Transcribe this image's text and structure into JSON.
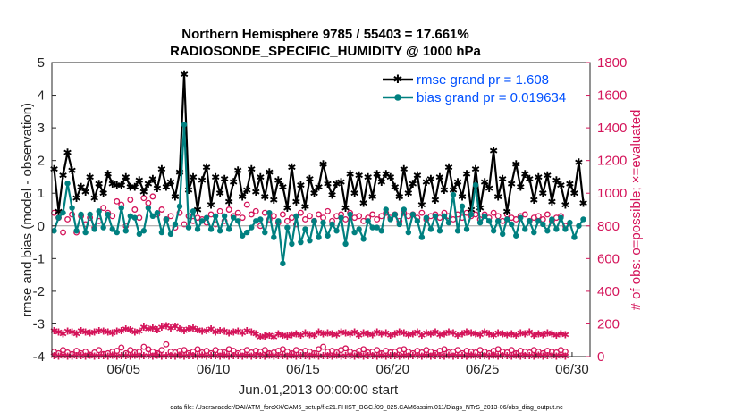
{
  "chart_data": {
    "type": "line",
    "title": "Northern Hemisphere 9785 / 55403 = 17.661%",
    "subtitle": "RADIOSONDE_SPECIFIC_HUMIDITY @ 1000 hPa",
    "xlabel": "Jun.01,2013 00:00:00 start",
    "ylabel_left": "rmse and bias (model - observation)",
    "ylabel_right": "# of obs: o=possible; ×=evaluated",
    "x_tick_labels": [
      "06/05",
      "06/10",
      "06/15",
      "06/20",
      "06/25",
      "06/30"
    ],
    "x_tick_values": [
      5,
      10,
      15,
      20,
      25,
      30
    ],
    "xlim": [
      1,
      31
    ],
    "ylim_left": [
      -4,
      5
    ],
    "ylim_right": [
      0,
      1800
    ],
    "y_ticks_left": [
      "-4",
      "-3",
      "-2",
      "-1",
      "0",
      "1",
      "2",
      "3",
      "4",
      "5"
    ],
    "y_ticks_right": [
      "0",
      "200",
      "400",
      "600",
      "800",
      "1000",
      "1200",
      "1400",
      "1600",
      "1800"
    ],
    "series": [
      {
        "name": "rmse grand pr = 1.608",
        "axis": "left",
        "color": "#000000",
        "marker": "hexagram",
        "values": [
          1.75,
          0.45,
          1.55,
          2.25,
          1.7,
          0.85,
          1.2,
          1.05,
          1.5,
          0.85,
          1.3,
          1.0,
          1.6,
          1.3,
          1.25,
          1.25,
          1.5,
          1.2,
          1.2,
          1.4,
          1.05,
          1.3,
          1.45,
          1.15,
          1.75,
          1.2,
          1.35,
          0.9,
          1.65,
          4.65,
          1.1,
          1.5,
          0.5,
          1.4,
          1.8,
          0.65,
          1.5,
          1.0,
          1.45,
          0.75,
          1.35,
          1.7,
          0.9,
          1.1,
          1.75,
          1.05,
          1.5,
          0.9,
          1.65,
          0.8,
          1.4,
          1.2,
          0.55,
          1.8,
          0.75,
          1.25,
          0.6,
          1.45,
          1.0,
          1.2,
          1.9,
          1.3,
          0.95,
          1.3,
          1.35,
          0.55,
          1.6,
          1.0,
          1.55,
          0.7,
          1.5,
          0.9,
          1.6,
          1.35,
          1.6,
          1.5,
          1.2,
          0.9,
          1.75,
          1.0,
          1.3,
          1.55,
          0.65,
          1.35,
          1.45,
          0.8,
          1.5,
          1.1,
          1.8,
          1.1,
          1.35,
          0.9,
          1.6,
          0.5,
          1.75,
          0.55,
          1.35,
          1.15,
          2.3,
          0.9,
          1.45,
          0.45,
          1.3,
          1.9,
          1.2,
          1.6,
          1.45,
          0.8,
          1.5,
          1.0,
          1.55,
          0.75,
          1.4,
          1.25,
          0.65,
          1.3,
          1.0,
          1.95,
          0.7
        ],
        "x": "t = 1 + i * 0.25 (6-hourly from Jun 01 00Z)"
      },
      {
        "name": "bias grand pr = 0.019634",
        "axis": "left",
        "color": "#008080",
        "marker": "circle",
        "values": [
          -0.15,
          0.25,
          0.4,
          1.3,
          0.55,
          -0.15,
          0.35,
          -0.2,
          0.35,
          -0.1,
          0.45,
          -0.05,
          0.35,
          -0.1,
          -0.2,
          0.55,
          -0.15,
          0.3,
          0.25,
          -0.25,
          -0.15,
          0.55,
          0.3,
          0.4,
          -0.2,
          0.2,
          -0.25,
          0.05,
          0.6,
          3.1,
          -0.05,
          0.45,
          -0.1,
          0.15,
          0.25,
          -0.1,
          0.3,
          -0.15,
          0.3,
          -0.1,
          0.25,
          0.15,
          -0.3,
          -0.2,
          -0.05,
          0.15,
          0.2,
          -0.2,
          0.4,
          -0.35,
          0.15,
          -1.15,
          -0.05,
          -0.55,
          0.3,
          -0.5,
          -0.1,
          -0.45,
          0.15,
          -0.35,
          0.1,
          -0.3,
          0.05,
          -0.15,
          0.25,
          -0.55,
          0.35,
          -0.2,
          -0.1,
          -0.4,
          0.15,
          -0.05,
          -0.05,
          -0.15,
          0.5,
          0.2,
          0.35,
          0.05,
          0.5,
          -0.2,
          0.35,
          0.15,
          -0.35,
          0.25,
          -0.1,
          0.3,
          -0.15,
          0.3,
          0.1,
          0.95,
          -0.15,
          0.6,
          -0.1,
          0.35,
          1.25,
          0.1,
          0.3,
          0.15,
          -0.15,
          0.15,
          -0.25,
          0.2,
          0.05,
          -0.3,
          0.25,
          -0.1,
          0.15,
          -0.2,
          0.15,
          0.05,
          -0.15,
          0.2,
          -0.1,
          0.25,
          -0.1,
          0.1,
          -0.35,
          0.0,
          0.2
        ]
      },
      {
        "name": "possible (1000 hPa, upper band)",
        "axis": "right",
        "color": "#d4145a",
        "marker": "circle-open",
        "values": [
          880,
          850,
          760,
          840,
          870,
          760,
          860,
          810,
          850,
          790,
          830,
          910,
          880,
          860,
          950,
          930,
          800,
          960,
          900,
          850,
          970,
          940,
          980,
          870,
          900,
          840,
          860,
          790,
          880,
          810,
          860,
          830,
          850,
          840,
          820,
          870,
          810,
          890,
          830,
          900,
          860,
          880,
          850,
          930,
          870,
          890,
          800,
          880,
          840,
          860,
          820,
          870,
          830,
          850,
          810,
          880,
          840,
          860,
          830,
          870,
          850,
          890,
          830,
          860,
          870,
          840,
          880,
          850,
          860,
          830,
          850,
          870,
          840,
          860,
          880,
          850,
          870,
          830,
          880,
          860,
          870,
          850,
          880,
          840,
          860,
          870,
          850,
          880,
          860,
          840,
          870,
          850,
          880,
          860,
          870,
          840,
          870,
          850,
          880,
          860,
          830,
          870,
          850,
          840,
          860,
          870,
          830,
          850,
          860,
          840,
          870,
          830,
          850,
          860,
          800
        ]
      },
      {
        "name": "evaluated (1000 hPa, upper band)",
        "axis": "right",
        "color": "#d4145a",
        "marker": "x",
        "values": [
          160,
          150,
          140,
          155,
          150,
          140,
          160,
          150,
          145,
          150,
          160,
          155,
          150,
          145,
          155,
          160,
          170,
          165,
          150,
          155,
          180,
          170,
          175,
          165,
          180,
          190,
          175,
          185,
          170,
          160,
          170,
          175,
          165,
          155,
          160,
          170,
          150,
          160,
          155,
          145,
          150,
          155,
          145,
          160,
          150,
          140,
          120,
          125,
          130,
          120,
          140,
          130,
          125,
          135,
          140,
          130,
          145,
          135,
          130,
          150,
          140,
          145,
          140,
          135,
          150,
          145,
          140,
          150,
          130,
          145,
          140,
          135,
          150,
          140,
          145,
          130,
          140,
          150,
          145,
          135,
          140,
          150,
          130,
          145,
          140,
          150,
          135,
          140,
          150,
          145,
          130,
          140,
          150,
          145,
          140,
          135,
          150,
          140,
          130,
          145,
          140,
          135,
          140,
          130,
          145,
          140,
          150,
          130,
          140,
          135,
          145,
          140,
          130,
          140,
          135
        ]
      },
      {
        "name": "possible (lower band)",
        "axis": "right",
        "color": "#d4145a",
        "marker": "circle-open",
        "values": [
          30,
          20,
          40,
          25,
          15,
          35,
          20,
          30,
          10,
          25,
          40,
          15,
          20,
          30,
          35,
          55,
          20,
          40,
          25,
          30,
          60,
          45,
          30,
          20,
          40,
          75,
          30,
          25,
          35,
          40,
          20,
          30,
          45,
          25,
          35,
          20,
          40,
          30,
          25,
          45,
          35,
          20,
          30,
          40,
          25,
          35,
          30,
          40,
          20,
          25,
          35,
          45,
          30,
          20,
          40,
          25,
          35,
          30,
          20,
          45,
          60,
          30,
          35,
          25,
          40,
          50,
          30,
          20,
          35,
          45,
          25,
          30,
          40,
          20,
          35,
          25,
          30,
          40,
          45,
          30,
          20,
          35,
          25,
          40,
          30,
          20,
          35,
          45,
          25,
          30,
          40,
          20,
          35,
          30,
          25,
          40,
          30,
          20,
          35,
          45,
          30,
          25,
          40,
          20,
          35,
          30,
          25,
          40,
          30,
          20,
          35,
          30,
          25,
          40,
          30
        ]
      },
      {
        "name": "evaluated (lower band)",
        "axis": "right",
        "color": "#d4145a",
        "marker": "x",
        "values": [
          5,
          3,
          8,
          4,
          2,
          6,
          5,
          3,
          7,
          4,
          6,
          5,
          3,
          8,
          4,
          6,
          5,
          3,
          7,
          4,
          6,
          5,
          3,
          8,
          4,
          6,
          5,
          3,
          7,
          4,
          6,
          5,
          3,
          8,
          4,
          6,
          5,
          3,
          7,
          4,
          6,
          5,
          3,
          8,
          4,
          6,
          5,
          3,
          7,
          4,
          6,
          5,
          3,
          8,
          4,
          6,
          5,
          3,
          7,
          4,
          6,
          5,
          3,
          8,
          4,
          6,
          5,
          3,
          7,
          4,
          6,
          5,
          3,
          8,
          4,
          6,
          5,
          3,
          7,
          4,
          6,
          5,
          3,
          8,
          4,
          6,
          5,
          3,
          7,
          4,
          6,
          5,
          3,
          8,
          4,
          6,
          5,
          3,
          7,
          4,
          6,
          5,
          3,
          8,
          4,
          6,
          5,
          3,
          7,
          4,
          6,
          5,
          3,
          8,
          4
        ]
      }
    ],
    "legend": {
      "placement": "top-right",
      "entries": [
        "rmse grand pr = 1.608",
        "bias grand pr = 0.019634"
      ]
    },
    "grid": false
  },
  "footer": {
    "text": "data file: /Users/raeder/DAI/ATM_forcXX/CAM6_setup/f.e21.FHIST_BGC.f09_025.CAM6assim.011/Diags_NTrS_2013-06/obs_diag_output.nc"
  },
  "colors": {
    "rmse": "#000000",
    "bias": "#008080",
    "counts": "#d4145a",
    "legend_text": "#0050ff"
  }
}
